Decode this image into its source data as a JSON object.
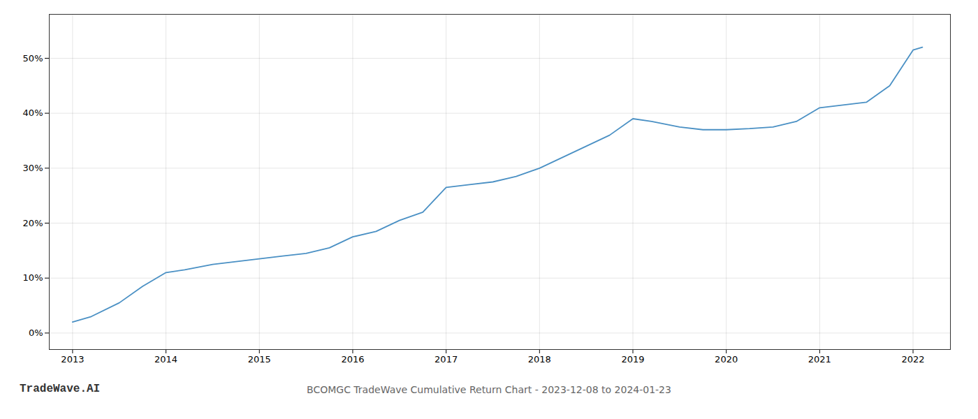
{
  "chart_data": {
    "type": "line",
    "title": "BCOMGC TradeWave Cumulative Return Chart - 2023-12-08 to 2024-01-23",
    "annotations": [
      "TradeWave.AI"
    ],
    "x": [
      2013.0,
      2013.2,
      2013.5,
      2013.75,
      2014.0,
      2014.2,
      2014.5,
      2014.75,
      2015.0,
      2015.25,
      2015.5,
      2015.75,
      2016.0,
      2016.25,
      2016.5,
      2016.75,
      2017.0,
      2017.25,
      2017.5,
      2017.75,
      2018.0,
      2018.25,
      2018.5,
      2018.75,
      2019.0,
      2019.2,
      2019.5,
      2019.75,
      2020.0,
      2020.25,
      2020.5,
      2020.75,
      2021.0,
      2021.25,
      2021.5,
      2021.75,
      2022.0,
      2022.1
    ],
    "values": [
      2.0,
      3.0,
      5.5,
      8.5,
      11.0,
      11.5,
      12.5,
      13.0,
      13.5,
      14.0,
      14.5,
      15.5,
      17.5,
      18.5,
      20.5,
      22.0,
      26.5,
      27.0,
      27.5,
      28.5,
      30.0,
      32.0,
      34.0,
      36.0,
      39.0,
      38.5,
      37.5,
      37.0,
      37.0,
      37.2,
      37.5,
      38.5,
      41.0,
      41.5,
      42.0,
      45.0,
      51.5,
      52.0
    ],
    "color": "#4a90c4",
    "xlim": [
      2012.75,
      2022.4
    ],
    "ylim": [
      -3,
      58
    ],
    "xticks": [
      2013,
      2014,
      2015,
      2016,
      2017,
      2018,
      2019,
      2020,
      2021,
      2022
    ],
    "yticks": [
      {
        "value": 0,
        "label": "0%"
      },
      {
        "value": 10,
        "label": "10%"
      },
      {
        "value": 20,
        "label": "20%"
      },
      {
        "value": 30,
        "label": "30%"
      },
      {
        "value": 40,
        "label": "40%"
      },
      {
        "value": 50,
        "label": "50%"
      }
    ],
    "grid": true
  }
}
